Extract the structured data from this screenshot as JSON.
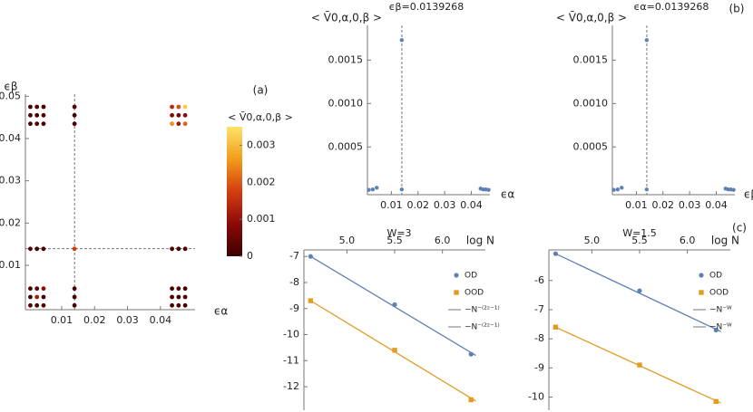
{
  "chart_data": [
    {
      "type": "scatter",
      "panel_label": "(a)",
      "xlabel": "ϵα",
      "ylabel": "ϵβ",
      "colorbar_label": "< V̄0,α,0,β >",
      "xlim": [
        -0.001,
        0.0505
      ],
      "ylim": [
        -0.0005,
        0.0505
      ],
      "xticks": [
        0.01,
        0.02,
        0.03,
        0.04
      ],
      "yticks": [
        0.01,
        0.02,
        0.03,
        0.04,
        0.05
      ],
      "hline": 0.0139268,
      "vline": 0.0139268,
      "clim": [
        0,
        0.0035
      ],
      "cticks": [
        0,
        0.001,
        0.002,
        0.003
      ],
      "colorscale": [
        "#3d0000",
        "#8b0a0a",
        "#d43d0f",
        "#f39c1b",
        "#fde26a"
      ],
      "x": [
        0.0005,
        0.0005,
        0.0005,
        0.0005,
        0.0005,
        0.0005,
        0.0005,
        0.0025,
        0.0025,
        0.0025,
        0.0025,
        0.0025,
        0.0025,
        0.0025,
        0.0045,
        0.0045,
        0.0045,
        0.0045,
        0.0045,
        0.0045,
        0.0045,
        0.0139,
        0.0139,
        0.0139,
        0.0139,
        0.0139,
        0.0139,
        0.0139,
        0.0435,
        0.0435,
        0.0435,
        0.0435,
        0.0435,
        0.0435,
        0.0435,
        0.0455,
        0.0455,
        0.0455,
        0.0455,
        0.0455,
        0.0455,
        0.0455,
        0.0475,
        0.0475,
        0.0475,
        0.0475,
        0.0475,
        0.0475,
        0.0475
      ],
      "y": [
        0.0005,
        0.0025,
        0.0045,
        0.0139,
        0.0435,
        0.0455,
        0.0475,
        0.0005,
        0.0025,
        0.0045,
        0.0139,
        0.0435,
        0.0455,
        0.0475,
        0.0005,
        0.0025,
        0.0045,
        0.0139,
        0.0435,
        0.0455,
        0.0475,
        0.0005,
        0.0025,
        0.0045,
        0.0139,
        0.0435,
        0.0455,
        0.0475,
        0.0005,
        0.0025,
        0.0045,
        0.0139,
        0.0435,
        0.0455,
        0.0475,
        0.0005,
        0.0025,
        0.0045,
        0.0139,
        0.0435,
        0.0455,
        0.0475,
        0.0005,
        0.0025,
        0.0045,
        0.0139,
        0.0435,
        0.0455,
        0.0475
      ],
      "values": [
        0.0002,
        0.0001,
        0.0001,
        0.0003,
        0.0001,
        0.0002,
        0.0001,
        0.0001,
        0.0012,
        0.0002,
        0.0001,
        0.0002,
        0.0001,
        0.0003,
        0.0002,
        0.0001,
        0.0009,
        0.0002,
        0.0001,
        0.0002,
        0.0001,
        0.0001,
        0.0001,
        0.0001,
        0.0017,
        0.0002,
        0.0001,
        0.0003,
        0.0001,
        0.0002,
        0.0001,
        0.0002,
        0.0025,
        0.0008,
        0.0014,
        0.0002,
        0.0001,
        0.0003,
        0.0001,
        0.0011,
        0.0006,
        0.0019,
        0.0001,
        0.0003,
        0.0001,
        0.0002,
        0.0021,
        0.0009,
        0.0032
      ]
    },
    {
      "type": "scatter",
      "panel_label": "(b)",
      "title": "ϵβ=0.0139268",
      "ylabel": "< V̄0,α,0,β >",
      "xlabel": "ϵα",
      "color": "#5e81b5",
      "xlim": [
        0.001,
        0.047
      ],
      "ylim": [
        -5e-05,
        0.0019
      ],
      "xticks": [
        0.01,
        0.02,
        0.03,
        0.04
      ],
      "yticks": [
        0.0005,
        {
          "value": 0.001,
          "label": "0.0010"
        },
        0.0015
      ],
      "vline": 0.0139268,
      "x": [
        0.0015,
        0.003,
        0.0045,
        0.0139,
        0.0139,
        0.0435,
        0.0445,
        0.0455,
        0.0465
      ],
      "values": [
        5e-06,
        1e-05,
        3e-05,
        1e-05,
        0.00173,
        2e-05,
        1e-05,
        1e-05,
        5e-06
      ]
    },
    {
      "type": "scatter",
      "title": "ϵα=0.0139268",
      "ylabel": "< V̄0,α,0,β >",
      "xlabel": "ϵβ",
      "color": "#5e81b5",
      "xlim": [
        0.001,
        0.047
      ],
      "ylim": [
        -5e-05,
        0.0019
      ],
      "xticks": [
        0.01,
        0.02,
        0.03,
        0.04
      ],
      "yticks": [
        0.0005,
        {
          "value": 0.001,
          "label": "0.0010"
        },
        0.0015
      ],
      "vline": 0.0139268,
      "x": [
        0.0015,
        0.003,
        0.0045,
        0.0139,
        0.0139,
        0.0435,
        0.0445,
        0.0455,
        0.0465
      ],
      "values": [
        5e-06,
        1e-05,
        3e-05,
        1e-05,
        0.00173,
        2e-05,
        1e-05,
        1e-05,
        5e-06
      ]
    },
    {
      "type": "line",
      "panel_label": "(c)",
      "title": "W=3",
      "xlabel": "log N",
      "x_axis_side": "top",
      "legend": "right",
      "xlim": [
        4.55,
        6.45
      ],
      "ylim": [
        -12.9,
        -6.75
      ],
      "xticks": [
        {
          "value": 5,
          "label": "5.0"
        },
        5.5,
        {
          "value": 6,
          "label": "6.0"
        }
      ],
      "yticks": [
        -7,
        -8,
        -9,
        -10,
        -11,
        -12
      ],
      "series": [
        {
          "name": "OD",
          "color": "#5e81b5",
          "marker": "circle",
          "x": [
            4.62,
            5.5,
            6.3
          ],
          "values": [
            -7.0,
            -8.85,
            -10.75
          ]
        },
        {
          "name": "OOD",
          "color": "#e19c24",
          "marker": "square",
          "x": [
            4.62,
            5.5,
            6.3
          ],
          "values": [
            -8.7,
            -10.6,
            -12.5
          ]
        },
        {
          "name": "~N⁻⁽²ᶻ⁻¹⁾",
          "color": "#5e81b5",
          "marker": "line",
          "x": [
            4.62,
            6.35
          ],
          "values": [
            -7.0,
            -10.8
          ]
        },
        {
          "name": "~N⁻⁽²ᶻ⁻¹⁾",
          "color": "#e19c24",
          "marker": "line",
          "x": [
            4.62,
            6.35
          ],
          "values": [
            -8.7,
            -12.55
          ]
        }
      ]
    },
    {
      "type": "line",
      "title": "W=1.5",
      "xlabel": "log N",
      "x_axis_side": "top",
      "legend": "right",
      "xlim": [
        4.55,
        6.45
      ],
      "ylim": [
        -10.45,
        -4.95
      ],
      "xticks": [
        {
          "value": 5,
          "label": "5.0"
        },
        5.5,
        {
          "value": 6,
          "label": "6.0"
        }
      ],
      "yticks": [
        -6,
        -7,
        -8,
        -9,
        -10
      ],
      "series": [
        {
          "name": "OD",
          "color": "#5e81b5",
          "marker": "circle",
          "x": [
            4.62,
            5.5,
            6.3
          ],
          "values": [
            -5.08,
            -6.35,
            -7.7
          ]
        },
        {
          "name": "OOD",
          "color": "#e19c24",
          "marker": "square",
          "x": [
            4.62,
            5.5,
            6.3
          ],
          "values": [
            -7.6,
            -8.9,
            -10.15
          ]
        },
        {
          "name": "~N⁻ᵂ",
          "color": "#5e81b5",
          "marker": "line",
          "x": [
            4.62,
            6.35
          ],
          "values": [
            -5.08,
            -7.75
          ]
        },
        {
          "name": "~N⁻ᵂ",
          "color": "#e19c24",
          "marker": "line",
          "x": [
            4.62,
            6.35
          ],
          "values": [
            -7.6,
            -10.2
          ]
        }
      ]
    }
  ]
}
